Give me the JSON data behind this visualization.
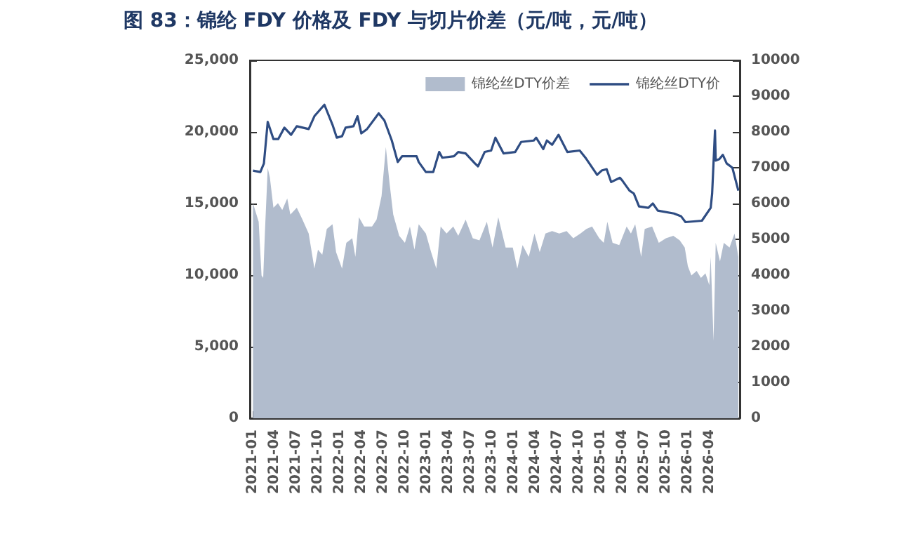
{
  "chart_data": {
    "type": "line",
    "title": "图 83：锦纶 FDY 价格及 FDY 与切片价差（元/吨，元/吨）",
    "xlim": [
      "2020-12-19",
      "2026-08-07"
    ],
    "xticks": [
      "2021-01",
      "2021-04",
      "2021-07",
      "2021-10",
      "2022-01",
      "2022-04",
      "2022-07",
      "2022-10",
      "2023-01",
      "2023-04",
      "2023-07",
      "2023-10",
      "2024-01",
      "2024-04",
      "2024-07",
      "2024-10",
      "2025-01",
      "2025-04",
      "2025-07",
      "2025-10",
      "2026-01",
      "2026-04"
    ],
    "ylim": [
      0,
      25000
    ],
    "yticks": [
      {
        "value": 0,
        "label": "0"
      },
      {
        "value": 5000,
        "label": "5,000"
      },
      {
        "value": 10000,
        "label": "10,000"
      },
      {
        "value": 15000,
        "label": "15,000"
      },
      {
        "value": 20000,
        "label": "20,000"
      },
      {
        "value": 25000,
        "label": "25,000"
      }
    ],
    "y2lim": [
      0,
      10000
    ],
    "y2ticks": [
      0,
      1000,
      2000,
      3000,
      4000,
      5000,
      6000,
      7000,
      8000,
      9000,
      10000
    ],
    "grid": false,
    "legend": "top right",
    "marker": "none",
    "line_style": "solid",
    "series": [
      {
        "name": "锦纶丝DTY价差",
        "type": "area",
        "axis": "y2",
        "color": "#b1bccd",
        "x": [
          "2021-01-01",
          "2021-01-25",
          "2021-02-06",
          "2021-02-13",
          "2021-02-20",
          "2021-03-04",
          "2021-03-13",
          "2021-03-28",
          "2021-04-16",
          "2021-05-04",
          "2021-05-25",
          "2021-06-07",
          "2021-07-04",
          "2021-07-28",
          "2021-08-23",
          "2021-09-16",
          "2021-10-01",
          "2021-10-19",
          "2021-11-07",
          "2021-12-01",
          "2021-12-16",
          "2022-01-10",
          "2022-01-28",
          "2022-02-22",
          "2022-03-07",
          "2022-03-22",
          "2022-04-13",
          "2022-05-16",
          "2022-06-04",
          "2022-06-25",
          "2022-07-13",
          "2022-07-28",
          "2022-08-13",
          "2022-09-07",
          "2022-10-01",
          "2022-10-22",
          "2022-11-10",
          "2022-11-28",
          "2022-12-28",
          "2023-01-19",
          "2023-02-10",
          "2023-02-28",
          "2023-03-25",
          "2023-04-22",
          "2023-05-13",
          "2023-06-13",
          "2023-07-13",
          "2023-08-10",
          "2023-09-10",
          "2023-10-04",
          "2023-10-28",
          "2023-11-28",
          "2023-12-28",
          "2024-01-16",
          "2024-02-07",
          "2024-03-04",
          "2024-03-28",
          "2024-04-19",
          "2024-05-13",
          "2024-06-10",
          "2024-07-10",
          "2024-08-10",
          "2024-09-07",
          "2024-10-07",
          "2024-11-01",
          "2024-11-25",
          "2024-12-25",
          "2025-01-13",
          "2025-01-28",
          "2025-02-19",
          "2025-03-19",
          "2025-04-19",
          "2025-05-07",
          "2025-05-25",
          "2025-06-19",
          "2025-07-04",
          "2025-08-04",
          "2025-09-01",
          "2025-10-01",
          "2025-11-01",
          "2025-11-28",
          "2025-12-19",
          "2026-01-01",
          "2026-01-16",
          "2026-02-07",
          "2026-02-25",
          "2026-03-16",
          "2026-04-01",
          "2026-04-07",
          "2026-04-19",
          "2026-04-28",
          "2026-05-16",
          "2026-06-01",
          "2026-06-25",
          "2026-07-16",
          "2026-08-01"
        ],
        "values": [
          6010,
          5490,
          3990,
          3920,
          5160,
          6990,
          6730,
          5880,
          6010,
          5820,
          6140,
          5690,
          5880,
          5550,
          5160,
          4180,
          4710,
          4570,
          5290,
          5420,
          4640,
          4180,
          4900,
          5030,
          4510,
          5620,
          5360,
          5360,
          5550,
          6210,
          7580,
          6600,
          5690,
          5100,
          4900,
          5360,
          4710,
          5420,
          5160,
          4640,
          4180,
          5360,
          5160,
          5360,
          5100,
          5550,
          5030,
          4970,
          5490,
          4770,
          5620,
          4770,
          4770,
          4180,
          4840,
          4510,
          5160,
          4640,
          5160,
          5230,
          5160,
          5230,
          5030,
          5160,
          5290,
          5360,
          5030,
          4900,
          5490,
          4900,
          4840,
          5360,
          5160,
          5420,
          4510,
          5290,
          5360,
          4900,
          5030,
          5100,
          4970,
          4770,
          4250,
          3990,
          4120,
          3920,
          4050,
          3720,
          4510,
          2160,
          4900,
          4380,
          4900,
          4770,
          5160,
          4510
        ]
      },
      {
        "name": "锦纶丝DTY价",
        "type": "line",
        "color": "#2f4d83",
        "x": [
          "2021-01-01",
          "2021-02-01",
          "2021-02-16",
          "2021-03-04",
          "2021-03-28",
          "2021-04-17",
          "2021-05-13",
          "2021-06-10",
          "2021-07-04",
          "2021-08-23",
          "2021-09-16",
          "2021-10-28",
          "2021-12-01",
          "2021-12-19",
          "2022-01-10",
          "2022-01-25",
          "2022-02-27",
          "2022-03-16",
          "2022-04-01",
          "2022-04-25",
          "2022-06-13",
          "2022-07-07",
          "2022-08-07",
          "2022-09-01",
          "2022-09-19",
          "2022-11-19",
          "2022-11-28",
          "2022-12-28",
          "2023-01-28",
          "2023-02-22",
          "2023-03-07",
          "2023-04-25",
          "2023-05-13",
          "2023-06-13",
          "2023-07-22",
          "2023-08-04",
          "2023-09-01",
          "2023-09-28",
          "2023-10-16",
          "2023-11-19",
          "2024-01-07",
          "2024-02-01",
          "2024-03-25",
          "2024-04-04",
          "2024-05-04",
          "2024-05-19",
          "2024-06-10",
          "2024-07-07",
          "2024-08-13",
          "2024-10-04",
          "2024-10-28",
          "2024-12-16",
          "2025-01-04",
          "2025-01-25",
          "2025-02-13",
          "2025-03-22",
          "2025-04-01",
          "2025-05-01",
          "2025-05-19",
          "2025-06-10",
          "2025-07-19",
          "2025-08-07",
          "2025-08-28",
          "2025-11-04",
          "2025-12-04",
          "2025-12-22",
          "2026-03-01",
          "2026-04-07",
          "2026-04-13",
          "2026-04-25",
          "2026-04-28",
          "2026-05-13",
          "2026-05-28",
          "2026-06-13",
          "2026-07-07",
          "2026-08-01"
        ],
        "values": [
          17300,
          17200,
          17800,
          20700,
          19500,
          19500,
          20300,
          19800,
          20400,
          20200,
          21100,
          21900,
          20500,
          19600,
          19700,
          20300,
          20400,
          21100,
          19900,
          20200,
          21300,
          20800,
          19400,
          17900,
          18300,
          18300,
          17900,
          17200,
          17200,
          18600,
          18200,
          18300,
          18600,
          18500,
          17800,
          17600,
          18600,
          18700,
          19600,
          18500,
          18600,
          19300,
          19400,
          19600,
          18800,
          19400,
          19100,
          19800,
          18600,
          18700,
          18200,
          17000,
          17300,
          17400,
          16500,
          16800,
          16600,
          15900,
          15700,
          14800,
          14700,
          15000,
          14500,
          14300,
          14100,
          13700,
          13800,
          14700,
          15700,
          20100,
          18000,
          18100,
          18400,
          17800,
          17500,
          15900
        ]
      }
    ]
  }
}
